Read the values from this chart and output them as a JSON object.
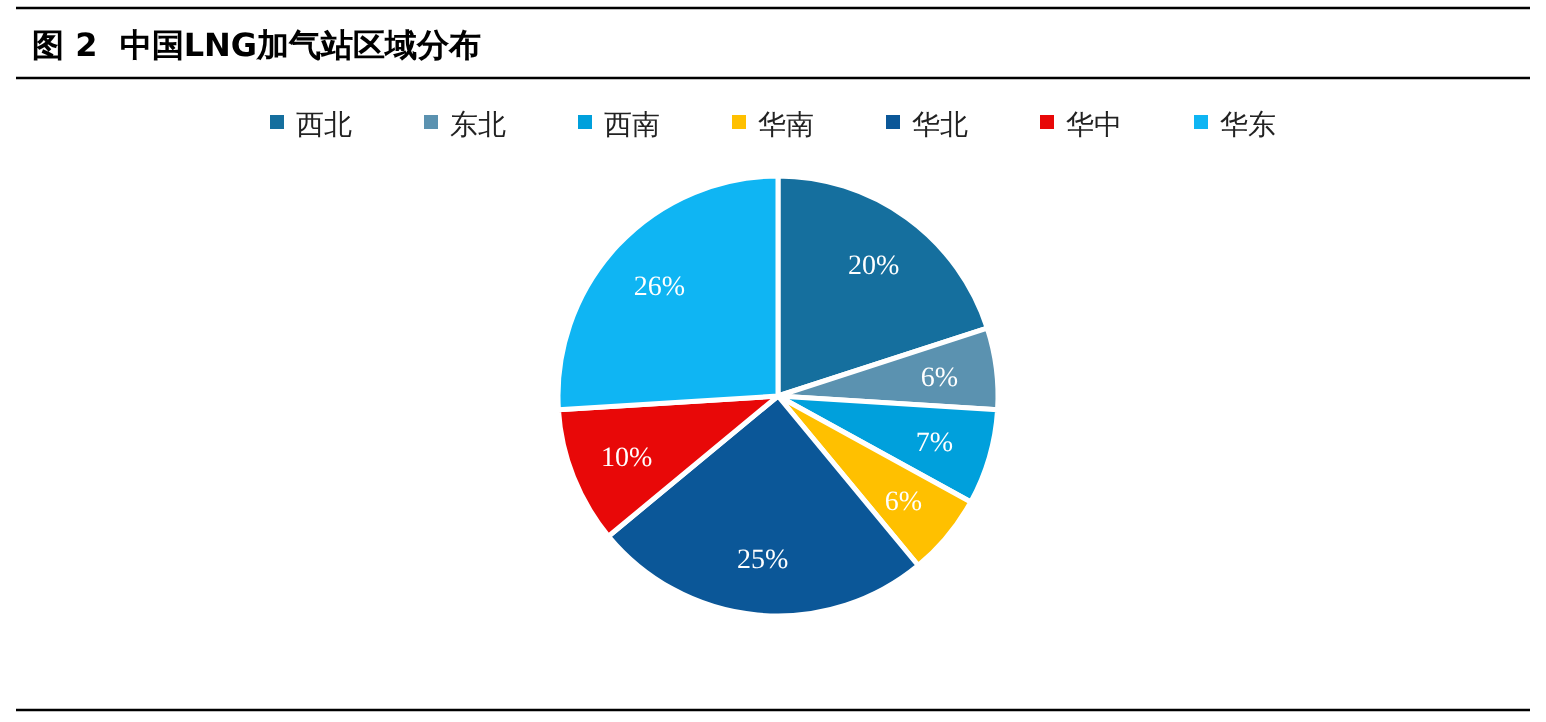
{
  "chart_data": {
    "type": "pie",
    "title": "图 2  中国LNG加气站区域分布",
    "categories": [
      "西北",
      "东北",
      "西南",
      "华南",
      "华北",
      "华中",
      "华东"
    ],
    "values": [
      20,
      6,
      7,
      6,
      25,
      10,
      26
    ],
    "colors": [
      "#156f9e",
      "#5b92b0",
      "#00a0dc",
      "#ffc000",
      "#0b5798",
      "#e80808",
      "#0fb5f3"
    ],
    "value_labels": [
      "20%",
      "6%",
      "7%",
      "6%",
      "25%",
      "10%",
      "26%"
    ],
    "legend": "top"
  }
}
